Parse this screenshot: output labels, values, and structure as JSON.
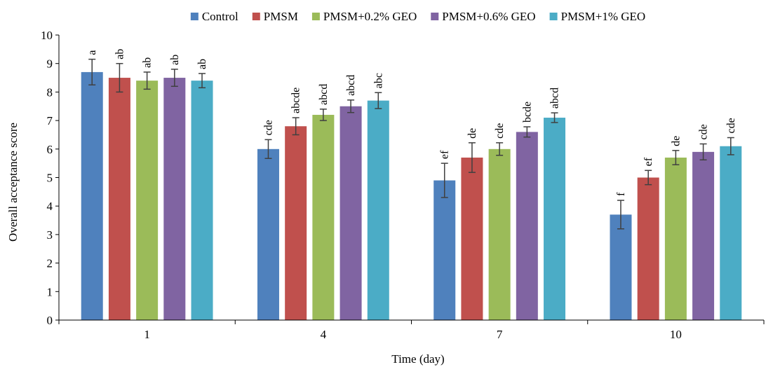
{
  "chart_data": {
    "type": "bar",
    "title": "",
    "xlabel": "Time (day)",
    "ylabel": "Overall acceptance score",
    "ylim": [
      0,
      10
    ],
    "yticks": [
      "0",
      "1",
      "2",
      "3",
      "4",
      "5",
      "6",
      "7",
      "8",
      "9",
      "10"
    ],
    "categories": [
      "1",
      "4",
      "7",
      "10"
    ],
    "grid": false,
    "legend_position": "top",
    "series": [
      {
        "name": "Control",
        "color": "#4F81BD",
        "values": [
          8.7,
          6.0,
          4.9,
          3.7
        ],
        "errors": [
          0.45,
          0.33,
          0.6,
          0.5
        ],
        "labels": [
          "a",
          "cde",
          "ef",
          "f"
        ]
      },
      {
        "name": "PMSM",
        "color": "#C0504D",
        "values": [
          8.5,
          6.8,
          5.7,
          5.0
        ],
        "errors": [
          0.5,
          0.3,
          0.52,
          0.25
        ],
        "labels": [
          "ab",
          "abcde",
          "de",
          "ef"
        ]
      },
      {
        "name": "PMSM+0.2% GEO",
        "color": "#9BBB59",
        "values": [
          8.4,
          7.2,
          6.0,
          5.7
        ],
        "errors": [
          0.3,
          0.2,
          0.22,
          0.25
        ],
        "labels": [
          "ab",
          "abcd",
          "cde",
          "de"
        ]
      },
      {
        "name": "PMSM+0.6% GEO",
        "color": "#8064A2",
        "values": [
          8.5,
          7.5,
          6.6,
          5.9
        ],
        "errors": [
          0.3,
          0.22,
          0.18,
          0.28
        ],
        "labels": [
          "ab",
          "abcd",
          "bcde",
          "cde"
        ]
      },
      {
        "name": "PMSM+1% GEO",
        "color": "#4BACC6",
        "values": [
          8.4,
          7.7,
          7.1,
          6.1
        ],
        "errors": [
          0.25,
          0.28,
          0.17,
          0.3
        ],
        "labels": [
          "ab",
          "abc",
          "abcd",
          "cde"
        ]
      }
    ]
  }
}
